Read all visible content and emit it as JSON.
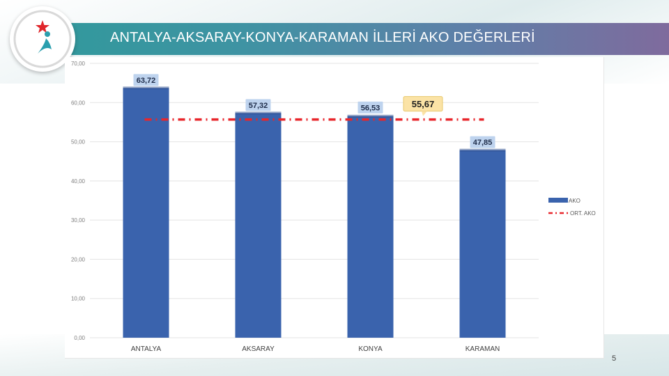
{
  "slide": {
    "title": "ANTALYA-AKSARAY-KONYA-KARAMAN İLLERİ AKO DEĞERLERİ",
    "page_number": "5"
  },
  "colors": {
    "bar": "#3a63ad",
    "average_line": "#e8262b",
    "average_label_bg": "#fbe3a6",
    "value_label_bg": "#bed3ee",
    "title_bar_start": "#2f9a9b",
    "title_bar_end": "#7f6b9d"
  },
  "chart_data": {
    "type": "bar",
    "categories": [
      "ANTALYA",
      "AKSARAY",
      "KONYA",
      "KARAMAN"
    ],
    "series": [
      {
        "name": "AKO",
        "values": [
          63.72,
          57.32,
          56.53,
          47.85
        ],
        "labels": [
          "63,72",
          "57,32",
          "56,53",
          "47,85"
        ]
      }
    ],
    "average": {
      "name": "ORT. AKO",
      "value": 55.67,
      "label": "55,67"
    },
    "ylim": [
      0,
      70
    ],
    "yticks": [
      0,
      10,
      20,
      30,
      40,
      50,
      60,
      70
    ],
    "ytick_labels": [
      "0,00",
      "10,00",
      "20,00",
      "30,00",
      "40,00",
      "50,00",
      "60,00",
      "70,00"
    ],
    "grid": true,
    "legend": "right"
  }
}
